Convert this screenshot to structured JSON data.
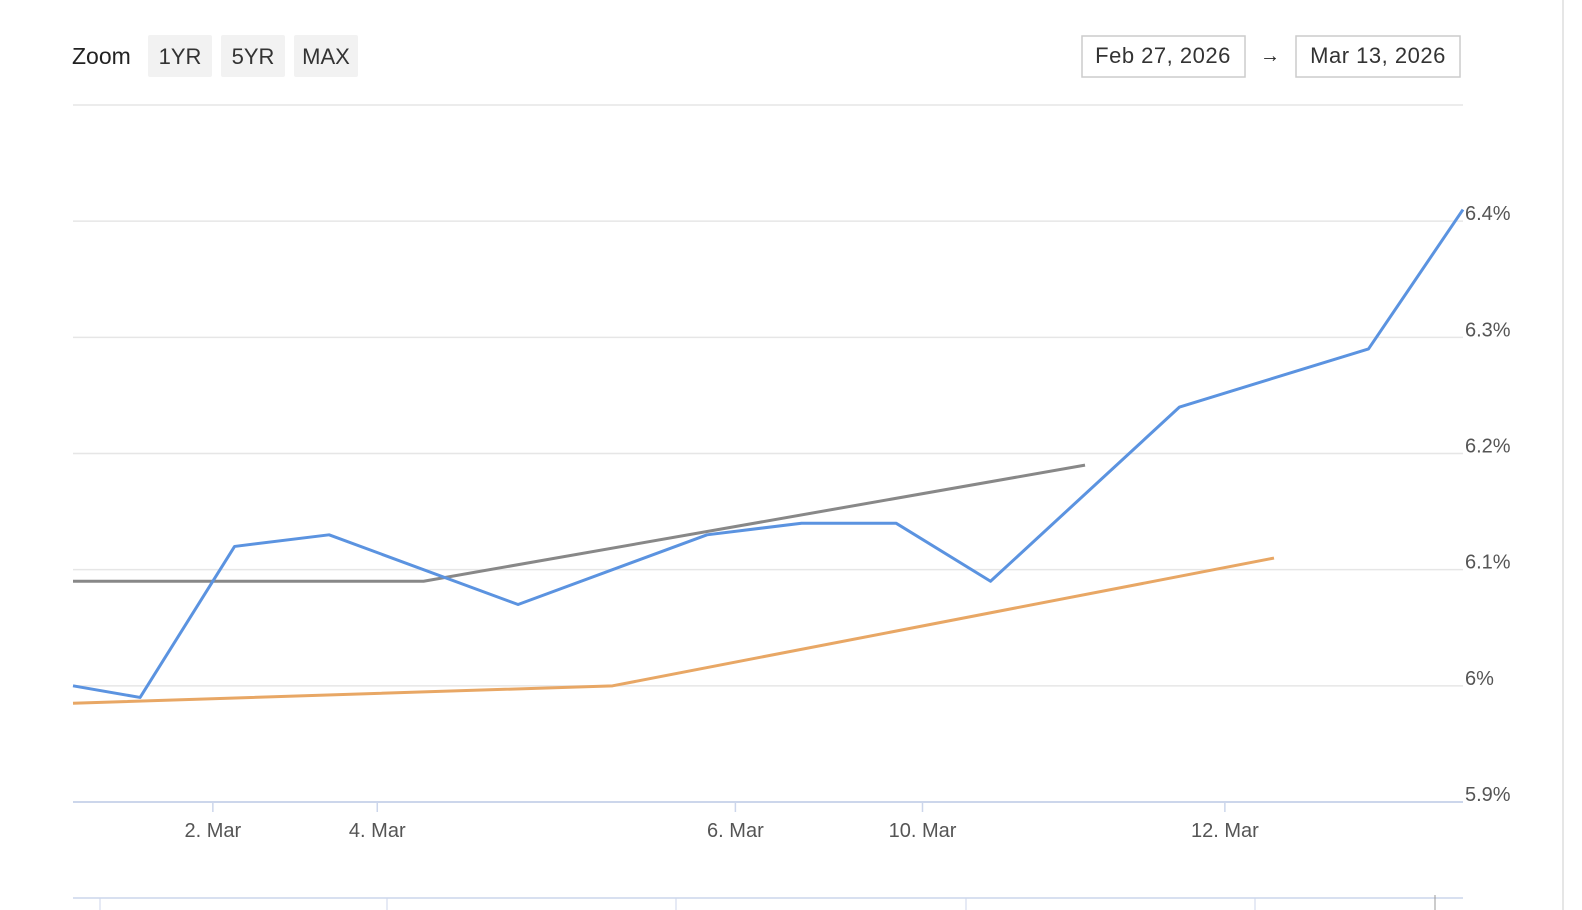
{
  "range_selector": {
    "label": "Zoom",
    "buttons": [
      "1YR",
      "5YR",
      "MAX"
    ]
  },
  "date_range": {
    "from": "Feb 27, 2026",
    "separator": "→",
    "to": "Mar 13, 2026"
  },
  "chart_data": {
    "type": "line",
    "xlim": [
      -0.71,
      14
    ],
    "xticks": [
      {
        "value": 0.77,
        "label": "2. Mar"
      },
      {
        "value": 2.51,
        "label": "4. Mar"
      },
      {
        "value": 6.3,
        "label": "6. Mar"
      },
      {
        "value": 8.28,
        "label": "10. Mar"
      },
      {
        "value": 11.48,
        "label": "12. Mar"
      }
    ],
    "ylim": [
      5.9,
      6.5
    ],
    "yticks": [
      {
        "value": 5.9,
        "label": "5.9%"
      },
      {
        "value": 6.0,
        "label": "6%"
      },
      {
        "value": 6.1,
        "label": "6.1%"
      },
      {
        "value": 6.2,
        "label": "6.2%"
      },
      {
        "value": 6.3,
        "label": "6.3%"
      },
      {
        "value": 6.4,
        "label": "6.4%"
      }
    ],
    "grid": true,
    "series": [
      {
        "color": "#888888",
        "x": [
          -0.71,
          3,
          10
        ],
        "values": [
          6.09,
          6.09,
          6.19
        ]
      },
      {
        "color": "#e8a765",
        "x": [
          -0.71,
          5,
          12
        ],
        "values": [
          5.985,
          6.0,
          6.11
        ]
      },
      {
        "color": "#5b93e0",
        "x": [
          -0.71,
          0,
          1,
          2,
          4,
          6,
          7,
          8,
          9,
          11,
          13,
          14
        ],
        "values": [
          6.0,
          5.99,
          6.12,
          6.13,
          6.07,
          6.13,
          6.14,
          6.14,
          6.09,
          6.24,
          6.29,
          6.41
        ]
      }
    ]
  }
}
